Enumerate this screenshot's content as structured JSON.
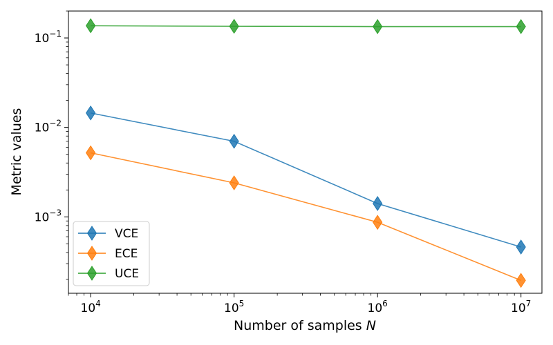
{
  "chart_data": {
    "type": "line",
    "title": "",
    "xlabel": "Number of samples",
    "xlabel_var": "N",
    "ylabel": "Metric values",
    "xscale": "log",
    "yscale": "log",
    "xlim": [
      7000,
      14000000
    ],
    "ylim": [
      0.00014,
      0.2
    ],
    "x": [
      10000,
      100000,
      1000000,
      10000000
    ],
    "xticks": [
      {
        "value": 10000,
        "base": "10",
        "exp": "4"
      },
      {
        "value": 100000,
        "base": "10",
        "exp": "5"
      },
      {
        "value": 1000000,
        "base": "10",
        "exp": "6"
      },
      {
        "value": 10000000,
        "base": "10",
        "exp": "7"
      }
    ],
    "yticks": [
      {
        "value": 0.1,
        "base": "10",
        "exp": "−1"
      },
      {
        "value": 0.01,
        "base": "10",
        "exp": "−2"
      },
      {
        "value": 0.001,
        "base": "10",
        "exp": "−3"
      }
    ],
    "grid": false,
    "legend_position": "lower-left",
    "marker": "diamond",
    "series": [
      {
        "name": "VCE",
        "color": "#1f77b4",
        "values": [
          0.0145,
          0.007,
          0.00141,
          0.00046
        ]
      },
      {
        "name": "ECE",
        "color": "#ff7f0e",
        "values": [
          0.0052,
          0.0024,
          0.00087,
          0.000195
        ]
      },
      {
        "name": "UCE",
        "color": "#2ca02c",
        "values": [
          0.137,
          0.135,
          0.134,
          0.134
        ]
      }
    ]
  }
}
